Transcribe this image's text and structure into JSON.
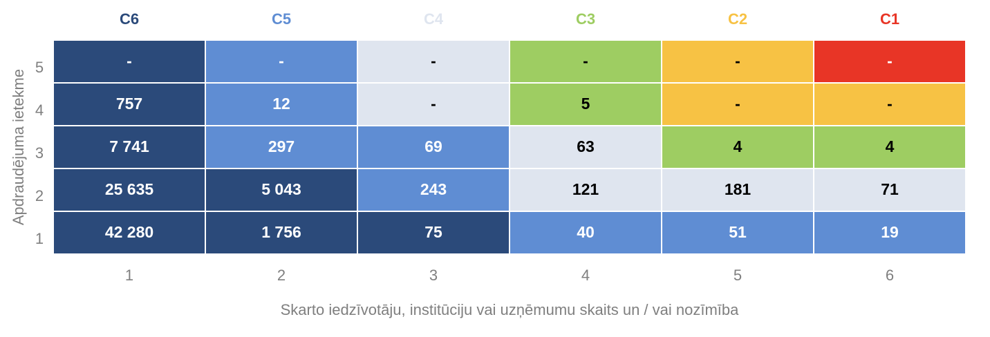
{
  "chart_data": {
    "type": "heatmap",
    "x_label": "Skarto iedzīvotāju, institūciju vai uzņēmumu skaits un / vai nozīmība",
    "y_label": "Apdraudējuma ietekme",
    "x": [
      1,
      2,
      3,
      4,
      5,
      6
    ],
    "y": [
      5,
      4,
      3,
      2,
      1
    ],
    "legend": [
      {
        "name": "C6",
        "color": "#2b4a7a"
      },
      {
        "name": "C5",
        "color": "#5f8dd3"
      },
      {
        "name": "C4",
        "color": "#dfe5ef"
      },
      {
        "name": "C3",
        "color": "#9ecd62"
      },
      {
        "name": "C2",
        "color": "#f7c244"
      },
      {
        "name": "C1",
        "color": "#e83526"
      }
    ],
    "values": [
      [
        null,
        null,
        null,
        null,
        null,
        null
      ],
      [
        757,
        12,
        null,
        5,
        null,
        null
      ],
      [
        7741,
        297,
        69,
        63,
        4,
        4
      ],
      [
        25635,
        5043,
        243,
        121,
        181,
        71
      ],
      [
        42280,
        1756,
        75,
        40,
        51,
        19
      ]
    ],
    "value_labels": [
      [
        "-",
        "-",
        "-",
        "-",
        "-",
        "-"
      ],
      [
        "757",
        "12",
        "-",
        "5",
        "-",
        "-"
      ],
      [
        "7 741",
        "297",
        "69",
        "63",
        "4",
        "4"
      ],
      [
        "25 635",
        "5 043",
        "243",
        "121",
        "181",
        "71"
      ],
      [
        "42 280",
        "1 756",
        "75",
        "40",
        "51",
        "19"
      ]
    ],
    "colors": [
      [
        "#2b4a7a",
        "#5f8dd3",
        "#dfe5ef",
        "#9ecd62",
        "#f7c244",
        "#e83526"
      ],
      [
        "#2b4a7a",
        "#5f8dd3",
        "#dfe5ef",
        "#9ecd62",
        "#f7c244",
        "#f7c244"
      ],
      [
        "#2b4a7a",
        "#5f8dd3",
        "#5f8dd3",
        "#dfe5ef",
        "#9ecd62",
        "#9ecd62"
      ],
      [
        "#2b4a7a",
        "#2b4a7a",
        "#5f8dd3",
        "#dfe5ef",
        "#dfe5ef",
        "#dfe5ef"
      ],
      [
        "#2b4a7a",
        "#2b4a7a",
        "#2b4a7a",
        "#5f8dd3",
        "#5f8dd3",
        "#5f8dd3"
      ]
    ]
  }
}
